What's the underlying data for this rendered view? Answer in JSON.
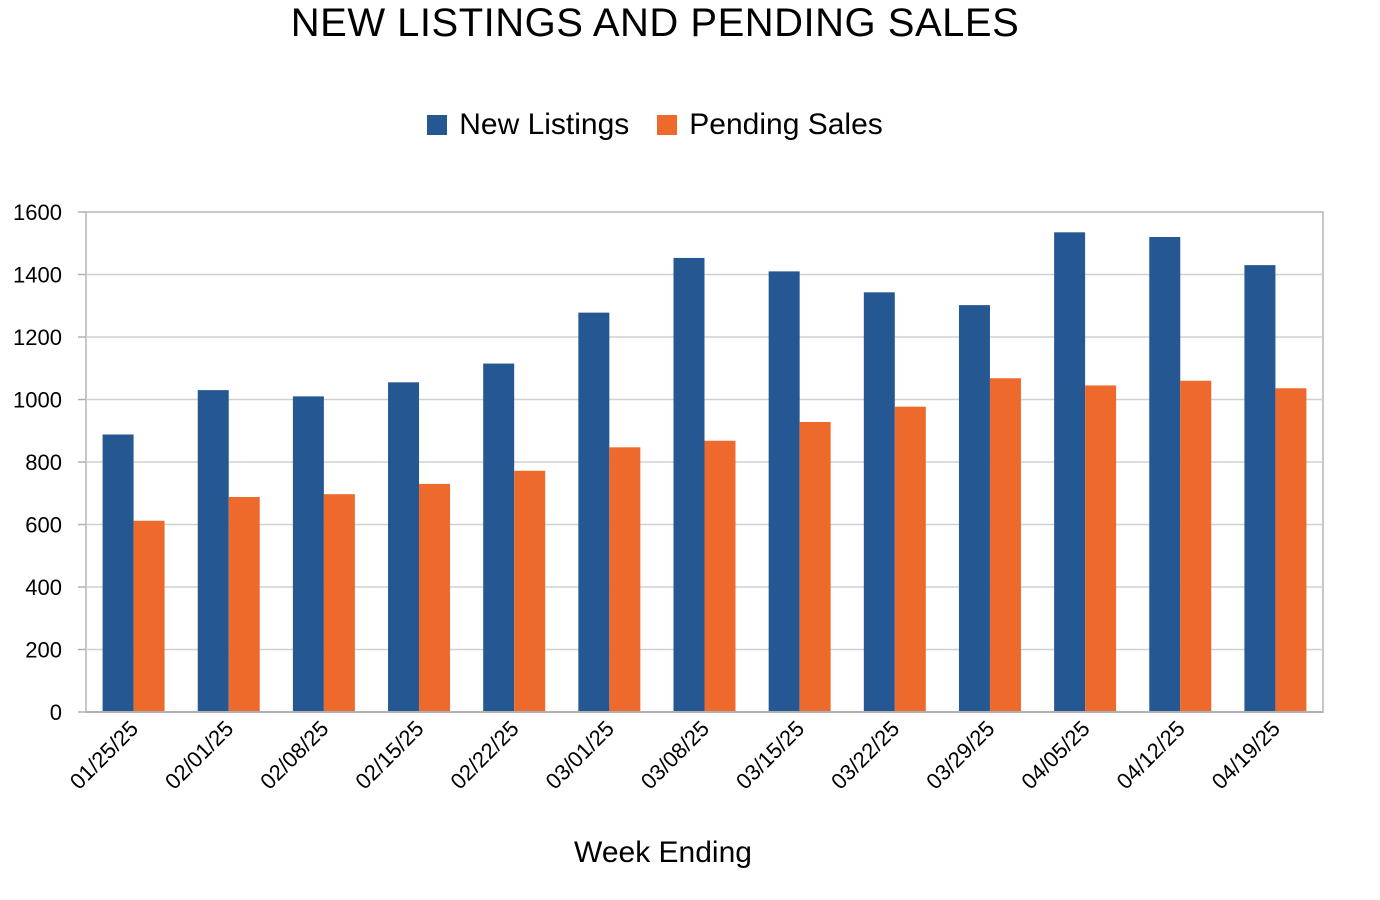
{
  "chart_data": {
    "type": "bar",
    "title": "NEW LISTINGS AND PENDING SALES",
    "xlabel": "Week Ending",
    "ylabel": "",
    "ylim": [
      0,
      1600
    ],
    "yticks": [
      0,
      200,
      400,
      600,
      800,
      1000,
      1200,
      1400,
      1600
    ],
    "grid": true,
    "legend_position": "top-center",
    "categories": [
      "01/25/25",
      "02/01/25",
      "02/08/25",
      "02/15/25",
      "02/22/25",
      "03/01/25",
      "03/08/25",
      "03/15/25",
      "03/22/25",
      "03/29/25",
      "04/05/25",
      "04/12/25",
      "04/19/25"
    ],
    "series": [
      {
        "name": "New Listings",
        "color": "#255893",
        "values": [
          888,
          1030,
          1010,
          1055,
          1115,
          1278,
          1453,
          1410,
          1343,
          1302,
          1535,
          1520,
          1430
        ]
      },
      {
        "name": "Pending Sales",
        "color": "#ee6a2c",
        "values": [
          612,
          688,
          697,
          730,
          772,
          847,
          868,
          928,
          977,
          1068,
          1045,
          1060,
          1036
        ]
      }
    ]
  }
}
